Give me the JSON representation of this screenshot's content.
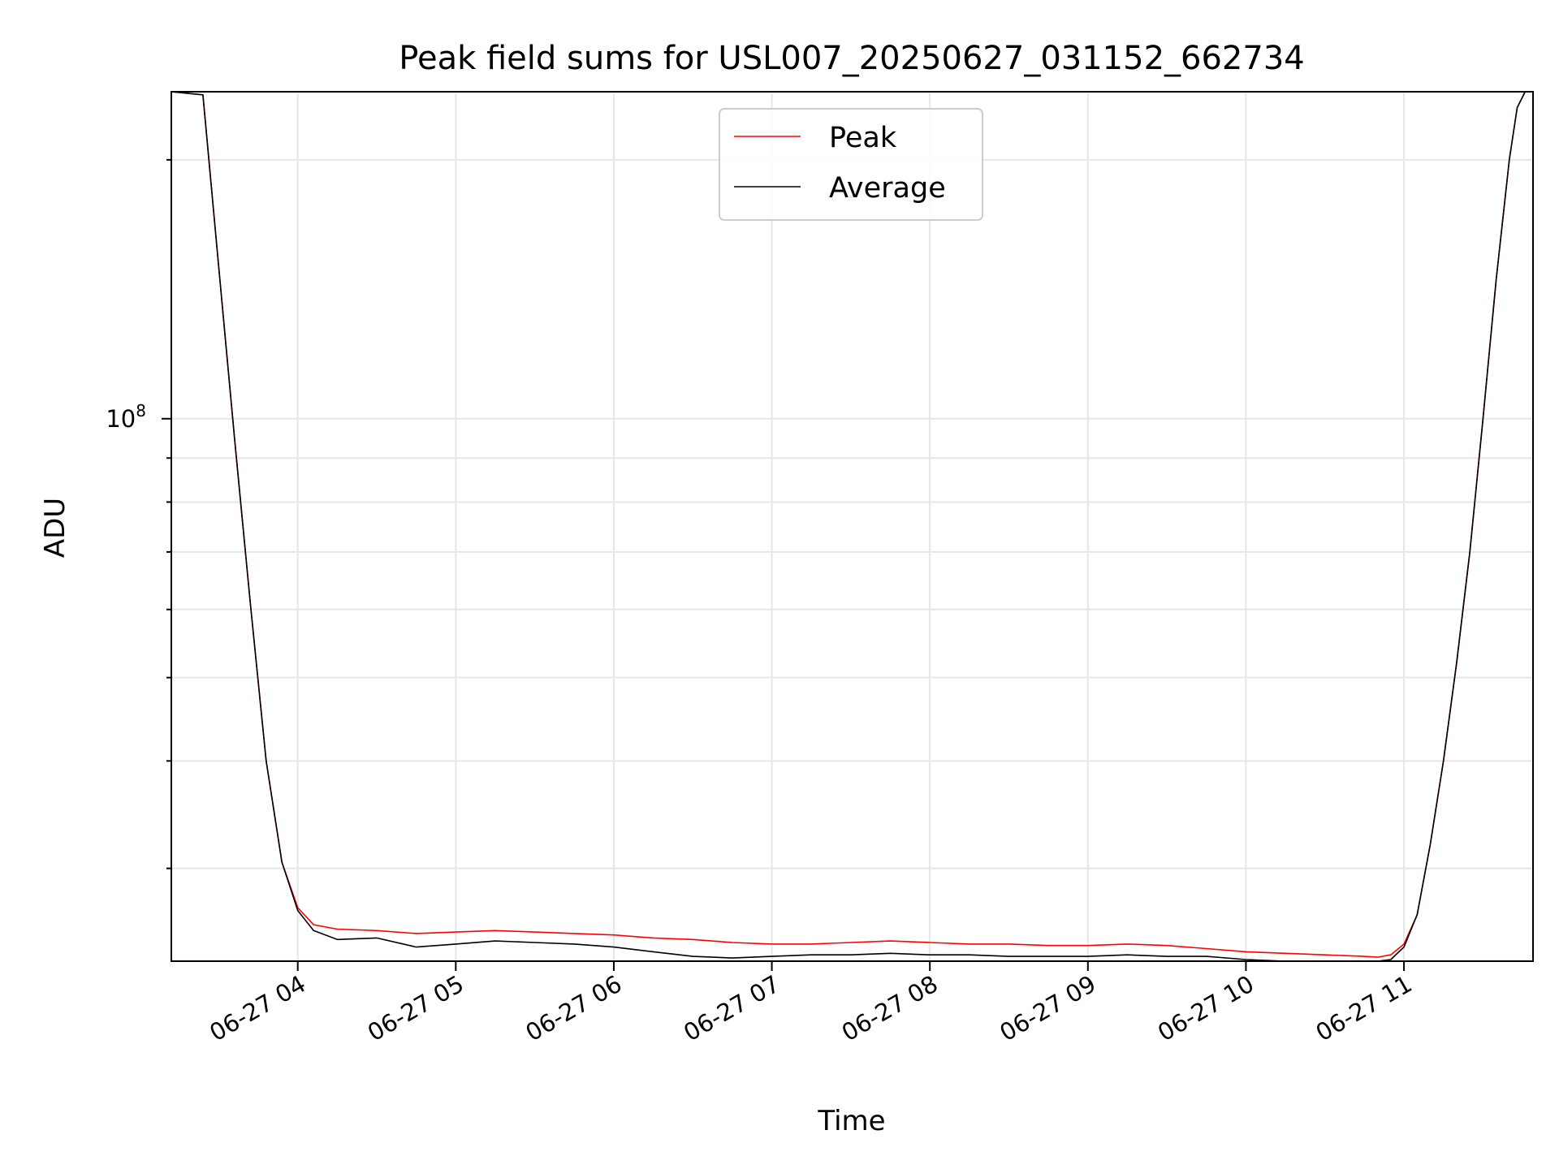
{
  "chart_data": {
    "type": "line",
    "title": "Peak field sums for USL007_20250627_031152_662734",
    "xlabel": "Time",
    "ylabel": "ADU",
    "x_type": "time",
    "x_date": "2025-06-27",
    "xlim": [
      "03:12",
      "11:49"
    ],
    "ylim": [
      23400000,
      240000000
    ],
    "yscale": "log",
    "x_ticks": [
      "04:00",
      "05:00",
      "06:00",
      "07:00",
      "08:00",
      "09:00",
      "10:00",
      "11:00"
    ],
    "x_tick_labels": [
      "06-27 04",
      "06-27 05",
      "06-27 06",
      "06-27 07",
      "06-27 08",
      "06-27 09",
      "06-27 10",
      "06-27 11"
    ],
    "y_tick_labels": [
      {
        "value": 100000000,
        "base": "10",
        "exp": "8"
      }
    ],
    "grid": true,
    "legend_position": "upper center",
    "series": [
      {
        "name": "Peak",
        "color": "#ff0000",
        "x": [
          "03:12",
          "03:24",
          "03:30",
          "03:36",
          "03:42",
          "03:48",
          "03:54",
          "04:00",
          "04:06",
          "04:15",
          "04:30",
          "04:45",
          "05:00",
          "05:15",
          "05:30",
          "05:45",
          "06:00",
          "06:15",
          "06:30",
          "06:45",
          "07:00",
          "07:15",
          "07:30",
          "07:45",
          "08:00",
          "08:15",
          "08:30",
          "08:45",
          "09:00",
          "09:15",
          "09:30",
          "09:45",
          "10:00",
          "10:15",
          "10:30",
          "10:45",
          "10:50",
          "10:55",
          "11:00",
          "11:05",
          "11:10",
          "11:15",
          "11:20",
          "11:25",
          "11:30",
          "11:35",
          "11:40",
          "11:43",
          "11:46",
          "11:49"
        ],
        "values": [
          240000000,
          238000000,
          150000000,
          95000000,
          61000000,
          40000000,
          30500000,
          27000000,
          25800000,
          25500000,
          25400000,
          25200000,
          25300000,
          25400000,
          25300000,
          25200000,
          25100000,
          24900000,
          24800000,
          24600000,
          24500000,
          24500000,
          24600000,
          24700000,
          24600000,
          24500000,
          24500000,
          24400000,
          24400000,
          24500000,
          24400000,
          24200000,
          24000000,
          23900000,
          23800000,
          23700000,
          23650000,
          23800000,
          24500000,
          26500000,
          32000000,
          40000000,
          52000000,
          70000000,
          100000000,
          145000000,
          200000000,
          230000000,
          240000000,
          240000000
        ]
      },
      {
        "name": "Average",
        "color": "#000000",
        "x": [
          "03:12",
          "03:24",
          "03:30",
          "03:36",
          "03:42",
          "03:48",
          "03:54",
          "04:00",
          "04:06",
          "04:15",
          "04:30",
          "04:45",
          "05:00",
          "05:15",
          "05:30",
          "05:45",
          "06:00",
          "06:15",
          "06:30",
          "06:45",
          "07:00",
          "07:15",
          "07:30",
          "07:45",
          "08:00",
          "08:15",
          "08:30",
          "08:45",
          "09:00",
          "09:15",
          "09:30",
          "09:45",
          "10:00",
          "10:15",
          "10:30",
          "10:45",
          "10:50",
          "10:55",
          "11:00",
          "11:05",
          "11:10",
          "11:15",
          "11:20",
          "11:25",
          "11:30",
          "11:35",
          "11:40",
          "11:43",
          "11:46",
          "11:49"
        ],
        "values": [
          240000000,
          238000000,
          150000000,
          95000000,
          61000000,
          40000000,
          30500000,
          26800000,
          25400000,
          24800000,
          24900000,
          24300000,
          24500000,
          24700000,
          24600000,
          24500000,
          24300000,
          24000000,
          23700000,
          23600000,
          23700000,
          23800000,
          23800000,
          23900000,
          23800000,
          23800000,
          23700000,
          23700000,
          23700000,
          23800000,
          23700000,
          23700000,
          23500000,
          23400000,
          23300000,
          23200000,
          23200000,
          23500000,
          24300000,
          26500000,
          32000000,
          40000000,
          52000000,
          70000000,
          100000000,
          145000000,
          200000000,
          230000000,
          240000000,
          240000000
        ]
      }
    ]
  }
}
